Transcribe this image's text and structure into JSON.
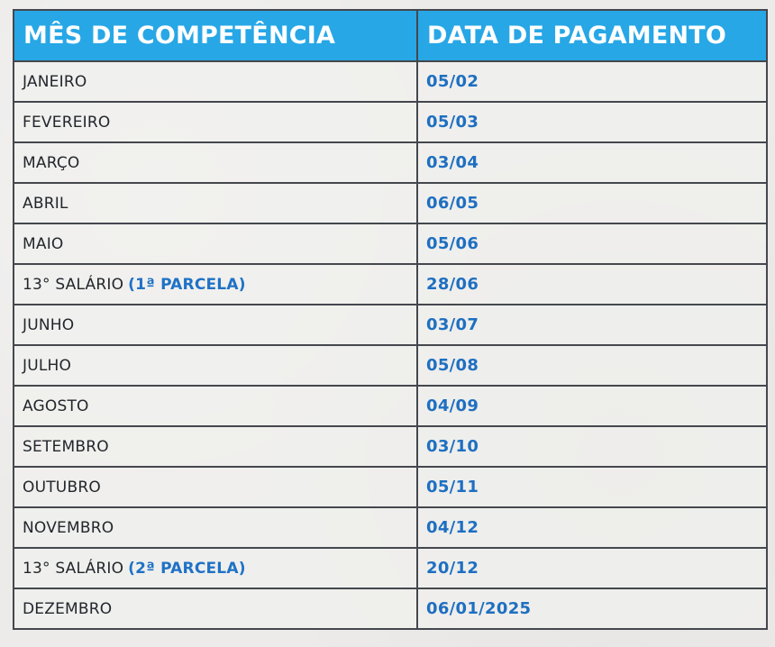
{
  "table": {
    "headers": {
      "month": "MÊS DE COMPETÊNCIA",
      "payment_date": "DATA DE PAGAMENTO"
    },
    "rows": [
      {
        "month": "JANEIRO",
        "note": "",
        "date": "05/02"
      },
      {
        "month": "FEVEREIRO",
        "note": "",
        "date": "05/03"
      },
      {
        "month": "MARÇO",
        "note": "",
        "date": "03/04"
      },
      {
        "month": "ABRIL",
        "note": "",
        "date": "06/05"
      },
      {
        "month": "MAIO",
        "note": "",
        "date": "05/06"
      },
      {
        "month": "13° SALÁRIO",
        "note": "(1ª PARCELA)",
        "date": "28/06"
      },
      {
        "month": "JUNHO",
        "note": "",
        "date": "03/07"
      },
      {
        "month": "JULHO",
        "note": "",
        "date": "05/08"
      },
      {
        "month": "AGOSTO",
        "note": "",
        "date": "04/09"
      },
      {
        "month": "SETEMBRO",
        "note": "",
        "date": "03/10"
      },
      {
        "month": "OUTUBRO",
        "note": "",
        "date": "05/11"
      },
      {
        "month": "NOVEMBRO",
        "note": "",
        "date": "04/12"
      },
      {
        "month": "13° SALÁRIO",
        "note": "(2ª PARCELA)",
        "date": "20/12"
      },
      {
        "month": "DEZEMBRO",
        "note": "",
        "date": "06/01/2025"
      }
    ]
  },
  "colors": {
    "header_background": "#27a7e6",
    "header_text": "#ffffff",
    "date_text": "#1e6fc1",
    "note_text": "#1f72c6",
    "grid": "#44474d"
  }
}
